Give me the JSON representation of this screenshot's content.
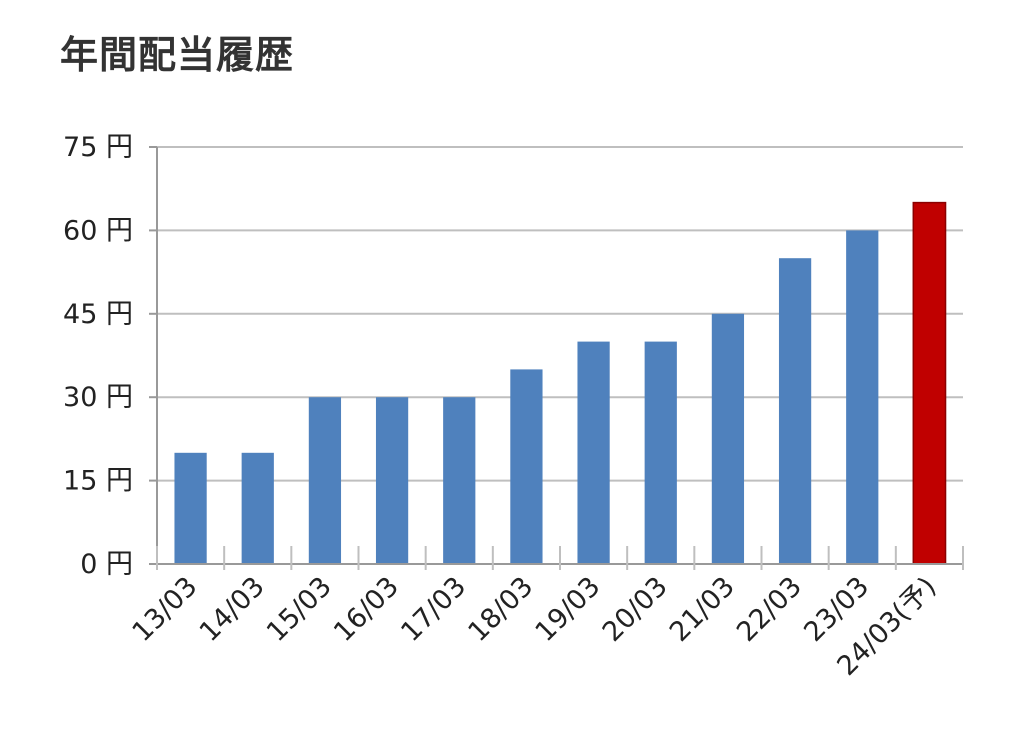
{
  "chart_data": {
    "type": "bar",
    "title": "年間配当履歴",
    "categories": [
      "13/03",
      "14/03",
      "15/03",
      "16/03",
      "17/03",
      "18/03",
      "19/03",
      "20/03",
      "21/03",
      "22/03",
      "23/03",
      "24/03(予)"
    ],
    "values": [
      20,
      20,
      30,
      30,
      30,
      35,
      40,
      40,
      45,
      55,
      60,
      65
    ],
    "ylim": [
      0,
      75
    ],
    "yticks": [
      0,
      15,
      30,
      45,
      60,
      75
    ],
    "ytick_suffix": " 円",
    "xlabel": "",
    "ylabel": "",
    "grid": true,
    "colors": {
      "bar": "#4f81bd",
      "forecast_bar": "#c00000",
      "forecast_border": "#8b0000",
      "grid": "#bfbfbf"
    },
    "highlight_index": 11
  }
}
